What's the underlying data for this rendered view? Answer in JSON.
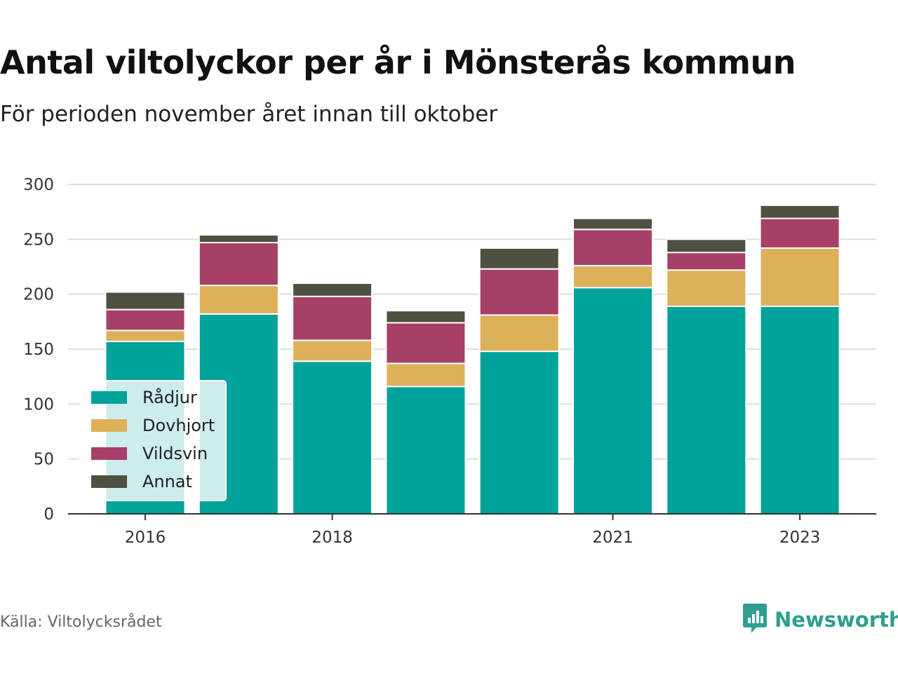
{
  "title": "Antal viltolyckor per år i Mönsterås kommun",
  "subtitle": "För perioden november året innan till oktober",
  "source": "Källa: Viltolycksrådet",
  "brand": {
    "name": "Newsworthy",
    "icon": "newsworthy-logo-icon",
    "color": "#2f9e8f"
  },
  "chart_data": {
    "type": "bar",
    "stacked": true,
    "categories": [
      "2016",
      "2017",
      "2018",
      "2019",
      "2020",
      "2021",
      "2022",
      "2023"
    ],
    "x_tick_labels": [
      "2016",
      "",
      "2018",
      "",
      "",
      "2021",
      "",
      "2023"
    ],
    "series": [
      {
        "name": "Rådjur",
        "color": "#00a39a",
        "values": [
          157,
          182,
          139,
          116,
          148,
          206,
          189,
          189
        ]
      },
      {
        "name": "Dovhjort",
        "color": "#ddb05a",
        "values": [
          10,
          26,
          19,
          21,
          33,
          20,
          33,
          53
        ]
      },
      {
        "name": "Vildsvin",
        "color": "#a64066",
        "values": [
          19,
          39,
          40,
          37,
          42,
          33,
          16,
          27
        ]
      },
      {
        "name": "Annat",
        "color": "#4f503f",
        "values": [
          16,
          7,
          12,
          11,
          19,
          10,
          12,
          12
        ]
      }
    ],
    "y_ticks": [
      0,
      50,
      100,
      150,
      200,
      250,
      300
    ],
    "ylim": [
      0,
      300
    ],
    "grid": true,
    "legend_position": "bottom-left"
  }
}
